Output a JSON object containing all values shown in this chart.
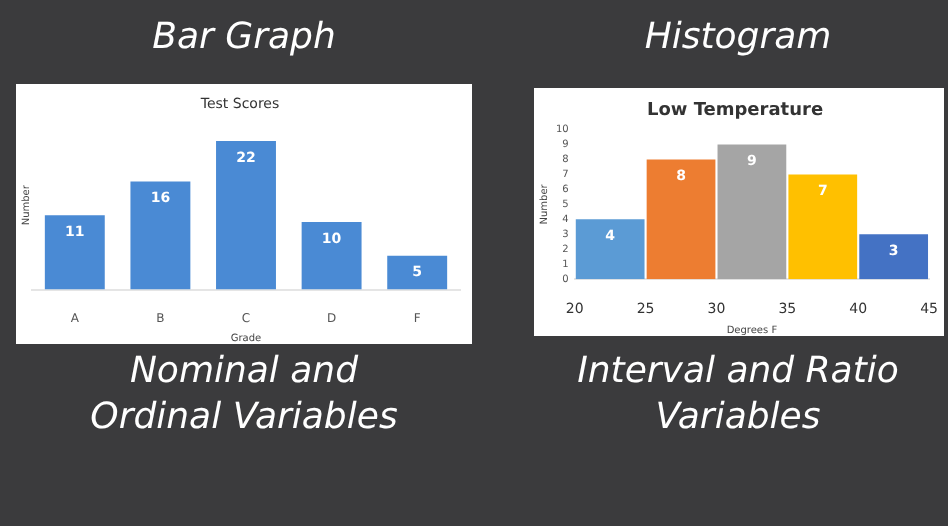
{
  "chart_data": [
    {
      "type": "bar",
      "title": "Test Scores",
      "xlabel": "Grade",
      "ylabel": "Number",
      "categories": [
        "A",
        "B",
        "C",
        "D",
        "F"
      ],
      "values": [
        11,
        16,
        22,
        10,
        5
      ],
      "color": "#4a8ad4",
      "data_labels": true,
      "tick_labels": "x",
      "grid": false,
      "legend": false,
      "annotations": [
        "Bar Graph",
        "Nominal and Ordinal Variables"
      ]
    },
    {
      "type": "histogram",
      "title": "Low Temperature",
      "xlabel": "Degrees F",
      "ylabel": "Number",
      "bins": [
        20,
        25,
        30,
        35,
        40,
        45
      ],
      "values": [
        4,
        8,
        9,
        7,
        3
      ],
      "colors": [
        "#5b9bd5",
        "#ed7d31",
        "#a5a5a5",
        "#ffc000",
        "#4472c4"
      ],
      "xlim": [
        20,
        45
      ],
      "xticks": [
        20,
        25,
        30,
        35,
        40,
        45
      ],
      "ylim": [
        0,
        10
      ],
      "yticks": [
        0,
        1,
        2,
        3,
        4,
        5,
        6,
        7,
        8,
        9,
        10
      ],
      "data_labels": true,
      "grid": false,
      "legend": false,
      "annotations": [
        "Histogram",
        "Interval and Ratio Variables"
      ]
    }
  ]
}
